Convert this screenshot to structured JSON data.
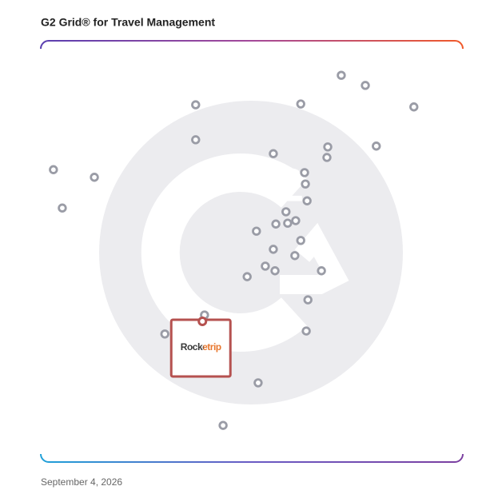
{
  "chart_data": {
    "type": "scatter",
    "title": "G2 Grid® for Travel Management",
    "date": "September 4, 2026",
    "xlim": [
      0,
      100
    ],
    "ylim": [
      0,
      100
    ],
    "color": "#9a9ca6",
    "x": [
      71.2,
      76.9,
      88.4,
      36.7,
      61.6,
      36.7,
      55.1,
      68.0,
      67.8,
      79.5,
      3.0,
      12.7,
      62.5,
      62.7,
      5.1,
      63.1,
      58.1,
      55.7,
      58.5,
      60.4,
      51.1,
      61.6,
      55.1,
      60.2,
      53.2,
      55.5,
      66.5,
      48.9,
      63.3,
      38.8,
      29.4,
      62.9,
      51.5,
      43.2
    ],
    "values": [
      91.8,
      89.4,
      84.3,
      84.8,
      85.0,
      76.5,
      73.2,
      74.8,
      72.3,
      75.0,
      69.4,
      67.6,
      68.7,
      66.0,
      60.3,
      62.0,
      59.4,
      56.5,
      56.7,
      57.3,
      54.8,
      52.6,
      50.5,
      49.0,
      46.5,
      45.4,
      45.4,
      44.0,
      38.5,
      34.9,
      30.4,
      31.1,
      18.8,
      8.7
    ],
    "highlight": {
      "label": "Rocketrip",
      "x": 38.3,
      "y": 33.4,
      "color": "#b5514f"
    }
  }
}
